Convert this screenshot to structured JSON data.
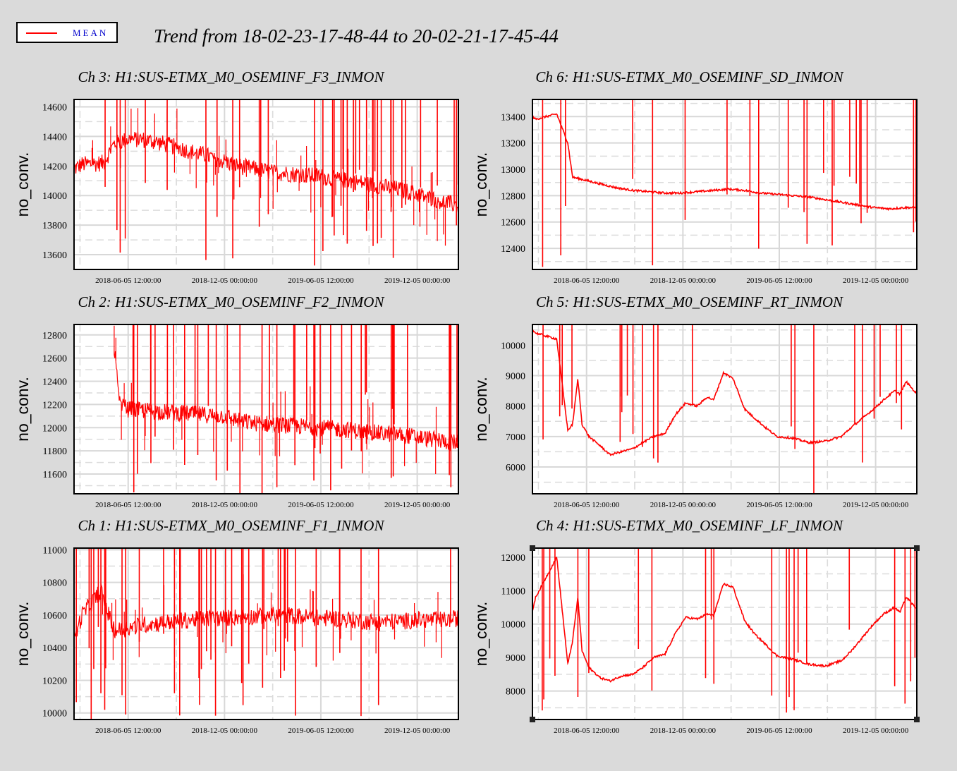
{
  "legend": {
    "label": "MEAN",
    "color": "#ff0000"
  },
  "page_title": "Trend from 18-02-23-17-48-44 to 20-02-21-17-45-44",
  "chart_data": [
    {
      "type": "line",
      "title": "Ch 3: H1:SUS-ETMX_M0_OSEMINF_F3_INMON",
      "ylabel": "no_conv.",
      "ylim": [
        13500,
        14650
      ],
      "yticks": [
        13600,
        13800,
        14000,
        14200,
        14400,
        14600
      ],
      "xticks": [
        "2018-06-05 12:00:00",
        "2018-12-05 00:00:00",
        "2019-06-05 12:00:00",
        "2019-12-05 00:00:00"
      ],
      "xlim": [
        "2018-02-23",
        "2020-02-21"
      ],
      "grid": true,
      "series": [
        {
          "name": "MEAN",
          "color": "#ff0000",
          "x": [
            "2018-02-23",
            "2018-03-10",
            "2018-04-20",
            "2018-05-10",
            "2018-06-05",
            "2018-07-01",
            "2018-08-01",
            "2018-09-01",
            "2018-10-01",
            "2018-11-01",
            "2018-12-05",
            "2019-01-01",
            "2019-02-01",
            "2019-03-01",
            "2019-04-01",
            "2019-05-01",
            "2019-06-05",
            "2019-07-01",
            "2019-08-01",
            "2019-09-01",
            "2019-10-01",
            "2019-11-01",
            "2019-12-05",
            "2020-01-01",
            "2020-02-01",
            "2020-02-21"
          ],
          "y": [
            14180,
            14210,
            14220,
            14350,
            14380,
            14380,
            14360,
            14330,
            14300,
            14270,
            14230,
            14200,
            14180,
            14160,
            14150,
            14140,
            14130,
            14110,
            14100,
            14080,
            14060,
            14040,
            14010,
            13980,
            13950,
            13930
          ]
        }
      ]
    },
    {
      "type": "line",
      "title": "Ch 6: H1:SUS-ETMX_M0_OSEMINF_SD_INMON",
      "ylabel": "no_conv.",
      "ylim": [
        12240,
        13530
      ],
      "yticks": [
        12400,
        12600,
        12800,
        13000,
        13200,
        13400
      ],
      "xticks": [
        "2018-06-05 12:00:00",
        "2018-12-05 00:00:00",
        "2019-06-05 12:00:00",
        "2019-12-05 00:00:00"
      ],
      "xlim": [
        "2018-02-23",
        "2020-02-21"
      ],
      "grid": true,
      "series": [
        {
          "name": "MEAN",
          "color": "#ff0000",
          "x": [
            "2018-02-23",
            "2018-03-01",
            "2018-04-10",
            "2018-05-01",
            "2018-05-10",
            "2018-06-01",
            "2018-07-01",
            "2018-08-01",
            "2018-09-01",
            "2018-10-01",
            "2018-11-01",
            "2018-12-01",
            "2019-01-01",
            "2019-02-01",
            "2019-03-01",
            "2019-04-01",
            "2019-05-01",
            "2019-06-01",
            "2019-07-01",
            "2019-08-01",
            "2019-09-01",
            "2019-10-01",
            "2019-11-01",
            "2019-12-01",
            "2020-01-01",
            "2020-02-01",
            "2020-02-21"
          ],
          "y": [
            13400,
            13380,
            13420,
            13200,
            12940,
            12920,
            12890,
            12860,
            12840,
            12830,
            12820,
            12820,
            12830,
            12840,
            12850,
            12840,
            12820,
            12810,
            12800,
            12790,
            12770,
            12750,
            12730,
            12710,
            12700,
            12710,
            12710
          ]
        }
      ]
    },
    {
      "type": "line",
      "title": "Ch 2: H1:SUS-ETMX_M0_OSEMINF_F2_INMON",
      "ylabel": "no_conv.",
      "ylim": [
        11430,
        12890
      ],
      "yticks": [
        11600,
        11800,
        12000,
        12200,
        12400,
        12600,
        12800
      ],
      "xticks": [
        "2018-06-05 12:00:00",
        "2018-12-05 00:00:00",
        "2019-06-05 12:00:00",
        "2019-12-05 00:00:00"
      ],
      "xlim": [
        "2018-02-23",
        "2020-02-21"
      ],
      "grid": true,
      "series": [
        {
          "name": "MEAN",
          "color": "#ff0000",
          "x": [
            "2018-05-10",
            "2018-05-20",
            "2018-06-05",
            "2018-07-01",
            "2018-08-01",
            "2018-09-01",
            "2018-10-01",
            "2018-11-01",
            "2018-12-05",
            "2019-01-01",
            "2019-02-01",
            "2019-03-01",
            "2019-04-01",
            "2019-05-01",
            "2019-06-05",
            "2019-07-01",
            "2019-08-01",
            "2019-09-01",
            "2019-10-01",
            "2019-11-01",
            "2019-12-05",
            "2020-01-01",
            "2020-02-01",
            "2020-02-21"
          ],
          "y": [
            12700,
            12200,
            12160,
            12150,
            12140,
            12130,
            12120,
            12110,
            12100,
            12060,
            12040,
            12030,
            12020,
            12010,
            12000,
            11990,
            11980,
            11960,
            11950,
            11940,
            11920,
            11900,
            11880,
            11870
          ]
        }
      ]
    },
    {
      "type": "line",
      "title": "Ch 5: H1:SUS-ETMX_M0_OSEMINF_RT_INMON",
      "ylabel": "no_conv.",
      "ylim": [
        5120,
        10680
      ],
      "yticks": [
        6000,
        7000,
        8000,
        9000,
        10000
      ],
      "xticks": [
        "2018-06-05 12:00:00",
        "2018-12-05 00:00:00",
        "2019-06-05 12:00:00",
        "2019-12-05 00:00:00"
      ],
      "xlim": [
        "2018-02-23",
        "2020-02-21"
      ],
      "grid": true,
      "series": [
        {
          "name": "MEAN",
          "color": "#ff0000",
          "x": [
            "2018-02-23",
            "2018-03-01",
            "2018-04-10",
            "2018-05-01",
            "2018-05-10",
            "2018-05-20",
            "2018-05-28",
            "2018-06-10",
            "2018-07-01",
            "2018-07-20",
            "2018-08-10",
            "2018-09-01",
            "2018-09-20",
            "2018-10-10",
            "2018-11-01",
            "2018-11-20",
            "2018-12-10",
            "2019-01-01",
            "2019-01-20",
            "2019-02-01",
            "2019-02-20",
            "2019-03-10",
            "2019-04-01",
            "2019-04-20",
            "2019-05-10",
            "2019-06-01",
            "2019-07-01",
            "2019-08-01",
            "2019-09-01",
            "2019-10-01",
            "2019-10-20",
            "2019-11-10",
            "2019-12-01",
            "2019-12-20",
            "2020-01-10",
            "2020-01-20",
            "2020-02-01",
            "2020-02-21"
          ],
          "y": [
            10500,
            10400,
            10200,
            7200,
            7400,
            8900,
            7400,
            7000,
            6700,
            6400,
            6500,
            6600,
            6800,
            7000,
            7100,
            7700,
            8100,
            8000,
            8300,
            8200,
            9100,
            8900,
            7900,
            7600,
            7300,
            7000,
            6950,
            6800,
            6850,
            7000,
            7300,
            7600,
            7900,
            8200,
            8500,
            8400,
            8800,
            8400
          ]
        }
      ]
    },
    {
      "type": "line",
      "title": "Ch 1: H1:SUS-ETMX_M0_OSEMINF_F1_INMON",
      "ylabel": "no_conv.",
      "ylim": [
        9960,
        11010
      ],
      "yticks": [
        10000,
        10200,
        10400,
        10600,
        10800,
        11000
      ],
      "xticks": [
        "2018-06-05 12:00:00",
        "2018-12-05 00:00:00",
        "2019-06-05 12:00:00",
        "2019-12-05 00:00:00"
      ],
      "xlim": [
        "2018-02-23",
        "2020-02-21"
      ],
      "grid": true,
      "series": [
        {
          "name": "MEAN",
          "color": "#ff0000",
          "x": [
            "2018-02-23",
            "2018-03-10",
            "2018-04-15",
            "2018-05-10",
            "2018-06-05",
            "2018-07-01",
            "2018-08-01",
            "2018-09-01",
            "2018-10-01",
            "2018-11-01",
            "2018-12-05",
            "2019-01-01",
            "2019-02-01",
            "2019-03-01",
            "2019-04-01",
            "2019-05-01",
            "2019-06-05",
            "2019-07-01",
            "2019-08-01",
            "2019-09-01",
            "2019-10-01",
            "2019-11-01",
            "2019-12-05",
            "2020-01-01",
            "2020-02-01",
            "2020-02-21"
          ],
          "y": [
            10450,
            10600,
            10750,
            10500,
            10520,
            10540,
            10550,
            10560,
            10570,
            10580,
            10580,
            10590,
            10590,
            10600,
            10600,
            10590,
            10580,
            10580,
            10570,
            10560,
            10560,
            10560,
            10570,
            10570,
            10570,
            10580
          ]
        }
      ]
    },
    {
      "type": "line",
      "title": "Ch 4: H1:SUS-ETMX_M0_OSEMINF_LF_INMON",
      "ylabel": "no_conv.",
      "ylim": [
        7150,
        12270
      ],
      "yticks": [
        8000,
        9000,
        10000,
        11000,
        12000
      ],
      "xticks": [
        "2018-06-05 12:00:00",
        "2018-12-05 00:00:00",
        "2019-06-05 12:00:00",
        "2019-12-05 00:00:00"
      ],
      "xlim": [
        "2018-02-23",
        "2020-02-21"
      ],
      "grid": true,
      "series": [
        {
          "name": "MEAN",
          "color": "#ff0000",
          "x": [
            "2018-02-23",
            "2018-03-01",
            "2018-04-10",
            "2018-05-01",
            "2018-05-10",
            "2018-05-20",
            "2018-05-28",
            "2018-06-10",
            "2018-07-01",
            "2018-07-20",
            "2018-08-10",
            "2018-09-01",
            "2018-09-20",
            "2018-10-10",
            "2018-11-01",
            "2018-11-20",
            "2018-12-10",
            "2019-01-01",
            "2019-01-20",
            "2019-02-01",
            "2019-02-20",
            "2019-03-10",
            "2019-04-01",
            "2019-04-20",
            "2019-05-10",
            "2019-06-01",
            "2019-07-01",
            "2019-08-01",
            "2019-09-01",
            "2019-10-01",
            "2019-10-20",
            "2019-11-10",
            "2019-12-01",
            "2019-12-20",
            "2020-01-10",
            "2020-01-20",
            "2020-02-01",
            "2020-02-21"
          ],
          "y": [
            10400,
            10800,
            12000,
            8800,
            9500,
            10800,
            9200,
            8700,
            8400,
            8300,
            8450,
            8500,
            8700,
            9000,
            9100,
            9700,
            10200,
            10150,
            10300,
            10250,
            11200,
            11100,
            10100,
            9700,
            9400,
            9050,
            8950,
            8800,
            8750,
            8900,
            9200,
            9600,
            10000,
            10300,
            10500,
            10350,
            10800,
            10450
          ]
        }
      ]
    }
  ]
}
